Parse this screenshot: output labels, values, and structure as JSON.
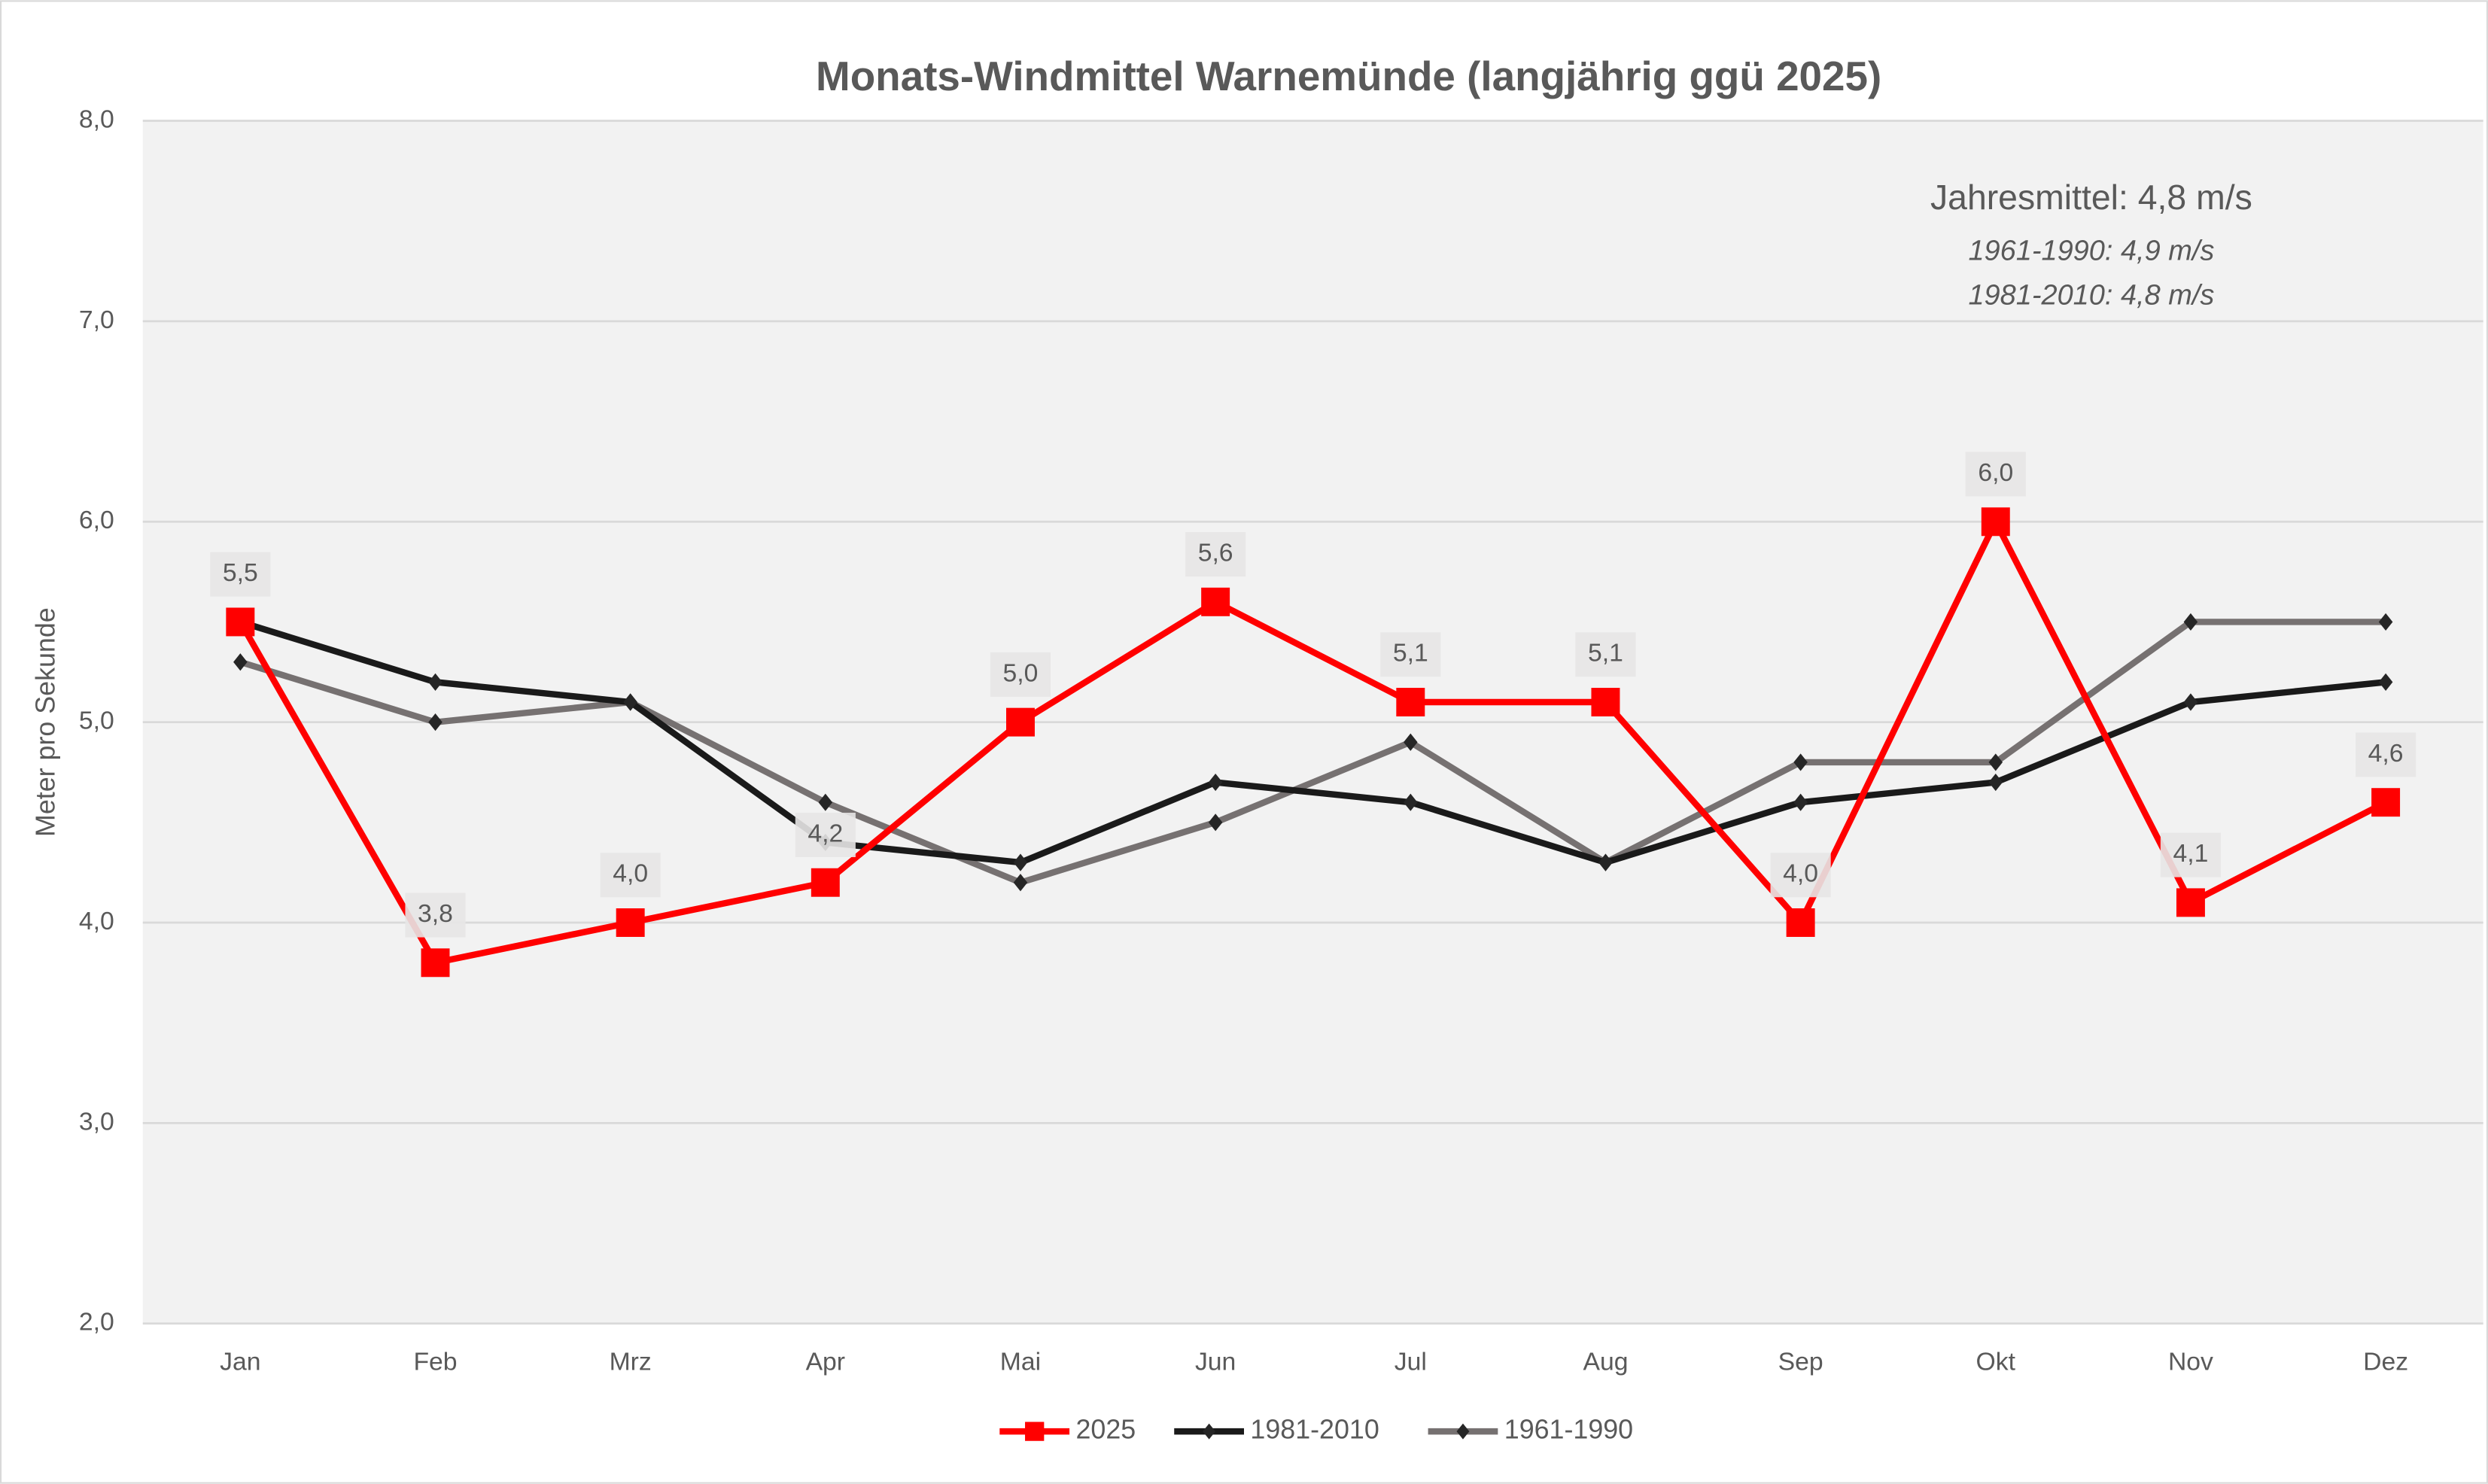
{
  "chart_data": {
    "type": "line",
    "title": "Monats-Windmittel Warnemünde (langjährig ggü 2025)",
    "y_label": "Meter pro Sekunde",
    "annotations": [
      "Jahresmittel: 4,8 m/s",
      "1961-1990: 4,9 m/s",
      "1981-2010: 4,8 m/s"
    ],
    "categories": [
      "Jan",
      "Feb",
      "Mrz",
      "Apr",
      "Mai",
      "Jun",
      "Jul",
      "Aug",
      "Sep",
      "Okt",
      "Nov",
      "Dez"
    ],
    "series": [
      {
        "name": "2025",
        "color": "#ff0000",
        "marker": "square",
        "values": [
          5.5,
          3.8,
          4.0,
          4.2,
          5.0,
          5.6,
          5.1,
          5.1,
          4.0,
          6.0,
          4.1,
          4.6
        ],
        "value_labels": [
          "5,5",
          "3,8",
          "4,0",
          "4,2",
          "5,0",
          "5,6",
          "5,1",
          "5,1",
          "4,0",
          "6,0",
          "4,1",
          "4,6"
        ]
      },
      {
        "name": "1981-2010",
        "color": "#1a1a1a",
        "marker": "diamond",
        "values": [
          5.5,
          5.2,
          5.1,
          4.4,
          4.3,
          4.7,
          4.6,
          4.3,
          4.6,
          4.7,
          5.1,
          5.2
        ]
      },
      {
        "name": "1961-1990",
        "color": "#767171",
        "marker": "diamond",
        "values": [
          5.3,
          5.0,
          5.1,
          4.6,
          4.2,
          4.5,
          4.9,
          4.3,
          4.8,
          4.8,
          5.5,
          5.5
        ]
      }
    ],
    "ylim": [
      2,
      8
    ],
    "yticks": [
      {
        "value": 2,
        "label": "2,0"
      },
      {
        "value": 3,
        "label": "3,0"
      },
      {
        "value": 4,
        "label": "4,0"
      },
      {
        "value": 5,
        "label": "5,0"
      },
      {
        "value": 6,
        "label": "6,0"
      },
      {
        "value": 7,
        "label": "7,0"
      },
      {
        "value": 8,
        "label": "8,0"
      }
    ],
    "grid": true,
    "legend": "bottom"
  }
}
